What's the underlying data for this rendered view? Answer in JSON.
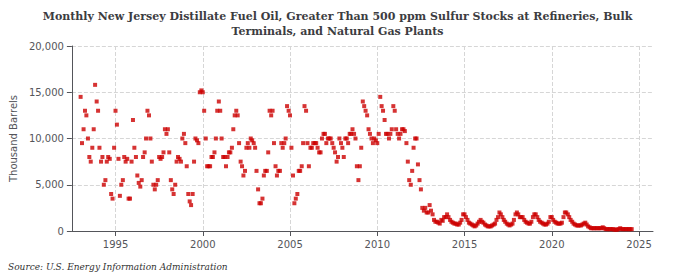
{
  "chart_data": {
    "type": "scatter",
    "title": "Monthly New Jersey Distillate Fuel Oil, Greater Than 500 ppm Sulfur Stocks at Refineries, Bulk\nTerminals, and Natural Gas Plants",
    "ylabel": "Thousand Barrels",
    "annotation": "Source: U.S. Energy Information Administration",
    "color": "#CC0000",
    "marker": "square",
    "grid": true,
    "ylim": [
      0,
      20000
    ],
    "yticks": [
      0,
      {
        "value": 5000,
        "label": "5,000"
      },
      {
        "value": 10000,
        "label": "10,000"
      },
      {
        "value": 15000,
        "label": "15,000"
      },
      {
        "value": 20000,
        "label": "20,000"
      }
    ],
    "xlim": [
      1992.5,
      2025.8
    ],
    "xticks": [
      1995,
      2000,
      2005,
      2010,
      2015,
      2020,
      2025
    ],
    "x": [
      1993.0,
      1993.08,
      1993.17,
      1993.25,
      1993.33,
      1993.42,
      1993.5,
      1993.58,
      1993.67,
      1993.75,
      1993.83,
      1993.92,
      1994.0,
      1994.08,
      1994.17,
      1994.25,
      1994.33,
      1994.42,
      1994.5,
      1994.58,
      1994.67,
      1994.75,
      1994.83,
      1994.92,
      1995.0,
      1995.08,
      1995.17,
      1995.25,
      1995.33,
      1995.42,
      1995.5,
      1995.58,
      1995.67,
      1995.75,
      1995.83,
      1995.92,
      1996.0,
      1996.08,
      1996.17,
      1996.25,
      1996.33,
      1996.42,
      1996.5,
      1996.58,
      1996.67,
      1996.75,
      1996.83,
      1996.92,
      1997.0,
      1997.08,
      1997.17,
      1997.25,
      1997.33,
      1997.42,
      1997.5,
      1997.58,
      1997.67,
      1997.75,
      1997.83,
      1997.92,
      1998.0,
      1998.08,
      1998.17,
      1998.25,
      1998.33,
      1998.42,
      1998.5,
      1998.58,
      1998.67,
      1998.75,
      1998.83,
      1998.92,
      1999.0,
      1999.08,
      1999.17,
      1999.25,
      1999.33,
      1999.42,
      1999.5,
      1999.58,
      1999.67,
      1999.75,
      1999.83,
      1999.92,
      2000.0,
      2000.08,
      2000.17,
      2000.25,
      2000.33,
      2000.42,
      2000.5,
      2000.58,
      2000.67,
      2000.75,
      2000.83,
      2000.92,
      2001.0,
      2001.08,
      2001.17,
      2001.25,
      2001.33,
      2001.42,
      2001.5,
      2001.58,
      2001.67,
      2001.75,
      2001.83,
      2001.92,
      2002.0,
      2002.08,
      2002.17,
      2002.25,
      2002.33,
      2002.42,
      2002.5,
      2002.58,
      2002.67,
      2002.75,
      2002.83,
      2002.92,
      2003.0,
      2003.08,
      2003.17,
      2003.25,
      2003.33,
      2003.42,
      2003.5,
      2003.58,
      2003.67,
      2003.75,
      2003.83,
      2003.92,
      2004.0,
      2004.08,
      2004.17,
      2004.25,
      2004.33,
      2004.42,
      2004.5,
      2004.58,
      2004.67,
      2004.75,
      2004.83,
      2004.92,
      2005.0,
      2005.08,
      2005.17,
      2005.25,
      2005.33,
      2005.42,
      2005.5,
      2005.58,
      2005.67,
      2005.75,
      2005.83,
      2005.92,
      2006.0,
      2006.08,
      2006.17,
      2006.25,
      2006.33,
      2006.42,
      2006.5,
      2006.58,
      2006.67,
      2006.75,
      2006.83,
      2006.92,
      2007.0,
      2007.08,
      2007.17,
      2007.25,
      2007.33,
      2007.42,
      2007.5,
      2007.58,
      2007.67,
      2007.75,
      2007.83,
      2007.92,
      2008.0,
      2008.08,
      2008.17,
      2008.25,
      2008.33,
      2008.42,
      2008.5,
      2008.58,
      2008.67,
      2008.75,
      2008.83,
      2008.92,
      2009.0,
      2009.08,
      2009.17,
      2009.25,
      2009.33,
      2009.42,
      2009.5,
      2009.58,
      2009.67,
      2009.75,
      2009.83,
      2009.92,
      2010.0,
      2010.08,
      2010.17,
      2010.25,
      2010.33,
      2010.42,
      2010.5,
      2010.58,
      2010.67,
      2010.75,
      2010.83,
      2010.92,
      2011.0,
      2011.08,
      2011.17,
      2011.25,
      2011.33,
      2011.42,
      2011.5,
      2011.58,
      2011.67,
      2011.75,
      2011.83,
      2011.92,
      2012.0,
      2012.08,
      2012.17,
      2012.25,
      2012.33,
      2012.42,
      2012.5,
      2012.58,
      2012.67,
      2012.75,
      2012.83,
      2012.92,
      2013.0,
      2013.08,
      2013.17,
      2013.25,
      2013.33,
      2013.42,
      2013.5,
      2013.58,
      2013.67,
      2013.75,
      2013.83,
      2013.92,
      2014.0,
      2014.08,
      2014.17,
      2014.25,
      2014.33,
      2014.42,
      2014.5,
      2014.58,
      2014.67,
      2014.75,
      2014.83,
      2014.92,
      2015.0,
      2015.08,
      2015.17,
      2015.25,
      2015.33,
      2015.42,
      2015.5,
      2015.58,
      2015.67,
      2015.75,
      2015.83,
      2015.92,
      2016.0,
      2016.08,
      2016.17,
      2016.25,
      2016.33,
      2016.42,
      2016.5,
      2016.58,
      2016.67,
      2016.75,
      2016.83,
      2016.92,
      2017.0,
      2017.08,
      2017.17,
      2017.25,
      2017.33,
      2017.42,
      2017.5,
      2017.58,
      2017.67,
      2017.75,
      2017.83,
      2017.92,
      2018.0,
      2018.08,
      2018.17,
      2018.25,
      2018.33,
      2018.42,
      2018.5,
      2018.58,
      2018.67,
      2018.75,
      2018.83,
      2018.92,
      2019.0,
      2019.08,
      2019.17,
      2019.25,
      2019.33,
      2019.42,
      2019.5,
      2019.58,
      2019.67,
      2019.75,
      2019.83,
      2019.92,
      2020.0,
      2020.08,
      2020.17,
      2020.25,
      2020.33,
      2020.42,
      2020.5,
      2020.58,
      2020.67,
      2020.75,
      2020.83,
      2020.92,
      2021.0,
      2021.08,
      2021.17,
      2021.25,
      2021.33,
      2021.42,
      2021.5,
      2021.58,
      2021.67,
      2021.75,
      2021.83,
      2021.92,
      2022.0,
      2022.08,
      2022.17,
      2022.25,
      2022.33,
      2022.42,
      2022.5,
      2022.58,
      2022.67,
      2022.75,
      2022.83,
      2022.92,
      2023.0,
      2023.08,
      2023.17,
      2023.25,
      2023.33,
      2023.42,
      2023.5,
      2023.58,
      2023.67,
      2023.75,
      2023.83,
      2023.92,
      2024.0,
      2024.08,
      2024.17,
      2024.25,
      2024.33,
      2024.42,
      2024.5,
      2024.58
    ],
    "values": [
      14500,
      9500,
      11000,
      13000,
      12500,
      10000,
      8000,
      7500,
      9000,
      11000,
      15800,
      14000,
      13000,
      9000,
      7500,
      8000,
      5000,
      5500,
      7500,
      8000,
      7800,
      4000,
      3500,
      9000,
      13000,
      11500,
      7800,
      3800,
      5000,
      5500,
      8000,
      7500,
      7800,
      3500,
      3500,
      7500,
      12000,
      9000,
      8000,
      6000,
      5200,
      4800,
      5500,
      8000,
      8500,
      10000,
      13000,
      12500,
      10000,
      7500,
      5000,
      4500,
      5000,
      5500,
      8000,
      7800,
      8000,
      8500,
      11000,
      10500,
      11000,
      8500,
      5500,
      4500,
      4000,
      5000,
      7500,
      8000,
      7800,
      7500,
      10000,
      10500,
      9500,
      7000,
      4000,
      3200,
      2800,
      4000,
      7500,
      10000,
      9800,
      9500,
      15000,
      15200,
      15000,
      13000,
      10000,
      7000,
      7000,
      7000,
      8000,
      8000,
      8500,
      10000,
      13000,
      14000,
      13000,
      10000,
      8000,
      8000,
      7000,
      8000,
      8500,
      8500,
      9000,
      11000,
      12500,
      13000,
      12500,
      9500,
      7500,
      7000,
      6000,
      6500,
      9000,
      9500,
      9000,
      10000,
      9800,
      9500,
      9000,
      6500,
      4500,
      3000,
      3000,
      3500,
      6000,
      6500,
      6500,
      8500,
      13000,
      12500,
      13000,
      9500,
      7000,
      6000,
      6500,
      6500,
      9500,
      9000,
      9500,
      10000,
      13500,
      13000,
      12500,
      9000,
      6000,
      3000,
      3500,
      4000,
      6500,
      6500,
      7000,
      9500,
      13500,
      13000,
      9500,
      7000,
      9000,
      9000,
      9500,
      9500,
      9500,
      9000,
      8500,
      8500,
      10000,
      10500,
      10500,
      9500,
      10000,
      10000,
      10000,
      9500,
      9000,
      8500,
      7500,
      8000,
      10000,
      9500,
      9000,
      8000,
      10000,
      10000,
      9500,
      10500,
      10500,
      11000,
      10500,
      10000,
      7000,
      5500,
      7000,
      9000,
      14000,
      13500,
      13000,
      12500,
      11000,
      10500,
      10000,
      9500,
      10000,
      9800,
      9500,
      10500,
      14500,
      13500,
      13000,
      12000,
      10500,
      10500,
      10000,
      10500,
      11000,
      13500,
      13000,
      11000,
      10500,
      10000,
      10500,
      11000,
      11000,
      10800,
      9500,
      7500,
      5500,
      5000,
      6500,
      9000,
      10000,
      10000,
      7200,
      5500,
      4500,
      2500,
      2200,
      2500,
      2000,
      2000,
      2800,
      2200,
      1800,
      1200,
      1000,
      1000,
      900,
      800,
      1200,
      1100,
      1500,
      1500,
      1800,
      1500,
      1200,
      1000,
      900,
      800,
      800,
      700,
      700,
      900,
      1200,
      1800,
      1800,
      1500,
      1200,
      900,
      800,
      700,
      600,
      500,
      600,
      800,
      1000,
      1200,
      1000,
      900,
      700,
      600,
      500,
      500,
      500,
      600,
      700,
      800,
      1200,
      1500,
      2000,
      1800,
      1500,
      1200,
      1000,
      800,
      700,
      600,
      700,
      800,
      1200,
      1800,
      2000,
      1800,
      1500,
      1500,
      1500,
      1200,
      1000,
      900,
      800,
      800,
      1000,
      1500,
      1800,
      1800,
      1500,
      1200,
      1000,
      900,
      800,
      700,
      700,
      800,
      1000,
      1500,
      1500,
      1200,
      1000,
      900,
      800,
      800,
      800,
      900,
      1500,
      2000,
      2000,
      1800,
      1500,
      1200,
      1000,
      800,
      700,
      600,
      600,
      600,
      600,
      700,
      800,
      900,
      700,
      500,
      400,
      300,
      300,
      300,
      300,
      300,
      300,
      300,
      300,
      400,
      300,
      200,
      200,
      200,
      200,
      200,
      200,
      150,
      150,
      150,
      200,
      300,
      200,
      200,
      200,
      200,
      200,
      200,
      200,
      200
    ]
  }
}
